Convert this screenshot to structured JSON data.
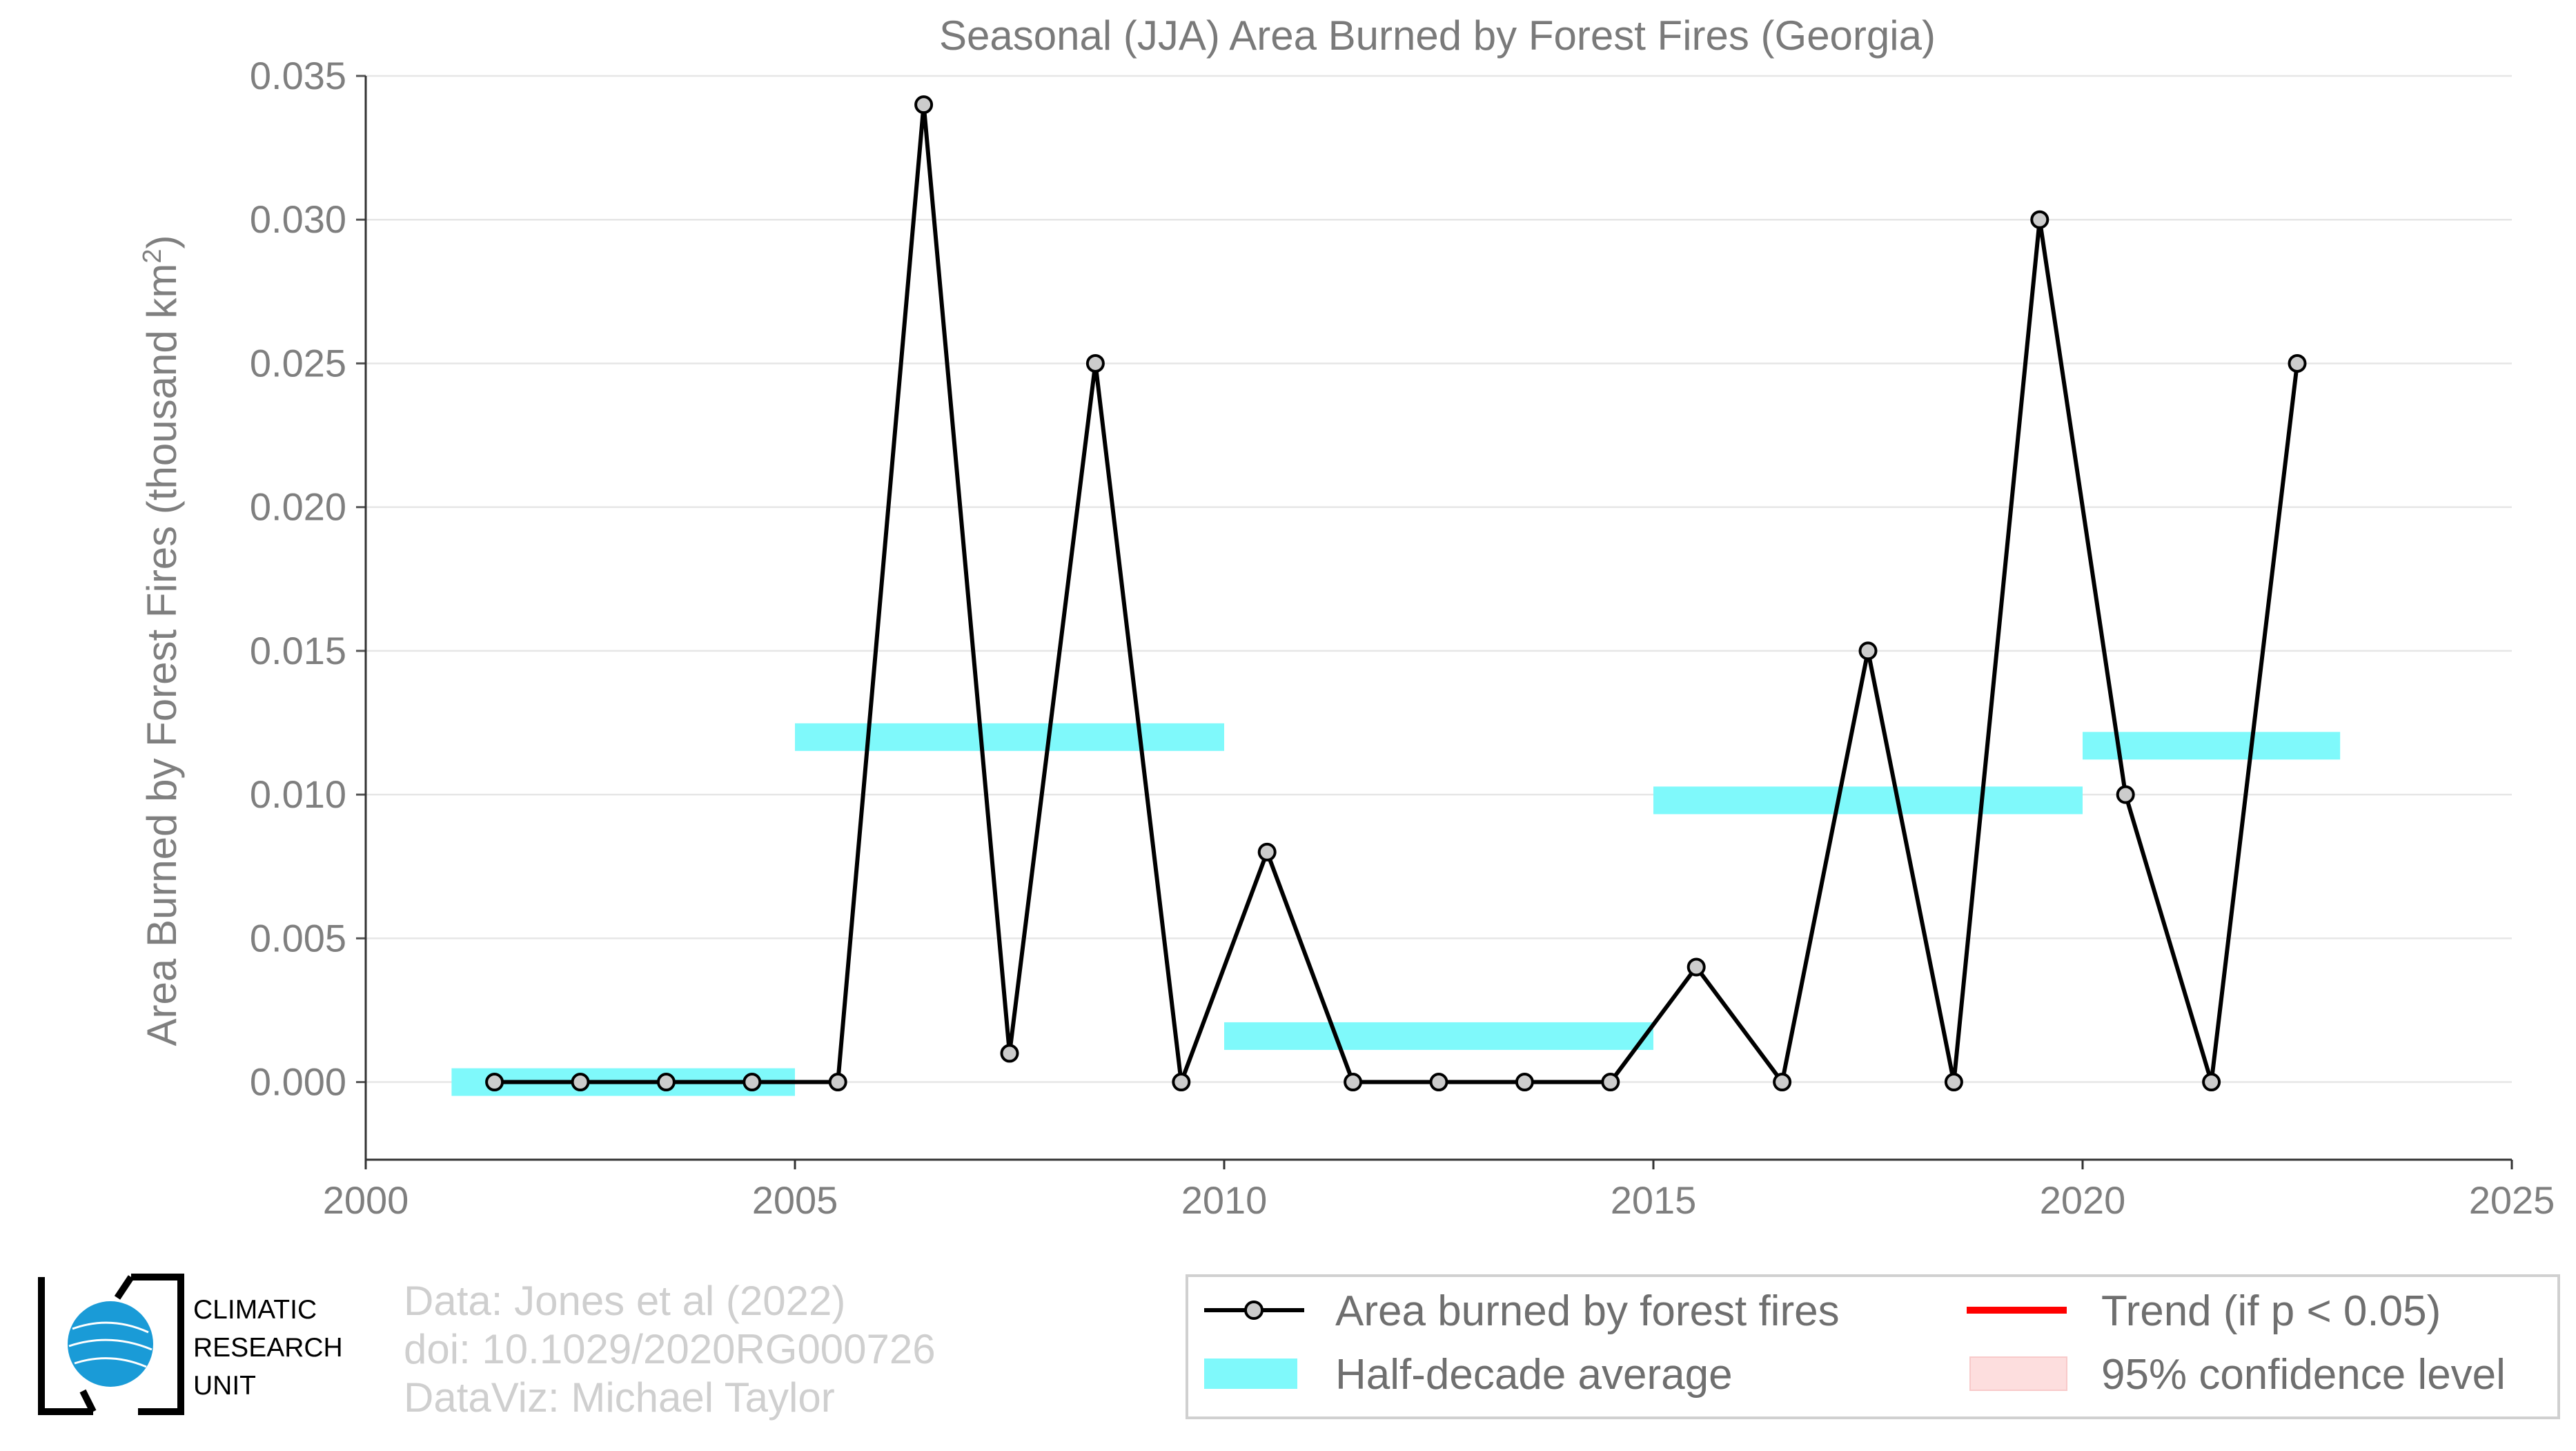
{
  "chart_data": {
    "type": "line",
    "title": "Seasonal (JJA) Area Burned by Forest Fires (Georgia)",
    "ylabel": "Area Burned by Forest Fires (thousand km",
    "ylabel_sup": "2",
    "ylabel_end": ")",
    "xlabel": "",
    "xlim": [
      2000,
      2025
    ],
    "ylim": [
      -0.0027,
      0.035
    ],
    "grid": "horizontal",
    "x_ticks": [
      "2000",
      "2005",
      "2010",
      "2015",
      "2020",
      "2025"
    ],
    "y_ticks": [
      "0.000",
      "0.005",
      "0.010",
      "0.015",
      "0.020",
      "0.025",
      "0.030",
      "0.035"
    ],
    "series": [
      {
        "name": "Area burned by forest fires",
        "color": "#000000",
        "x": [
          2001.5,
          2002.5,
          2003.5,
          2004.5,
          2005.5,
          2006.5,
          2007.5,
          2008.5,
          2009.5,
          2010.5,
          2011.5,
          2012.5,
          2013.5,
          2014.5,
          2015.5,
          2016.5,
          2017.5,
          2018.5,
          2019.5,
          2020.5,
          2021.5,
          2022.5
        ],
        "y": [
          0,
          0,
          0,
          0,
          0,
          0.034,
          0.001,
          0.025,
          0,
          0.008,
          0,
          0,
          0,
          0,
          0.004,
          0,
          0.015,
          0,
          0.03,
          0.01,
          0,
          0.025
        ]
      }
    ],
    "half_decade_average": {
      "name": "Half-decade average",
      "color": "#7ff9fb",
      "segments": [
        {
          "x0": 2001,
          "x1": 2005,
          "y": 0.0
        },
        {
          "x0": 2005,
          "x1": 2010,
          "y": 0.012
        },
        {
          "x0": 2010,
          "x1": 2015,
          "y": 0.0016
        },
        {
          "x0": 2015,
          "x1": 2020,
          "y": 0.0098
        },
        {
          "x0": 2020,
          "x1": 2023,
          "y": 0.0117
        }
      ]
    },
    "legend": {
      "placement": "bottom-right",
      "entries": [
        {
          "label": "Area burned by forest fires",
          "kind": "line-marker",
          "color": "#000000"
        },
        {
          "label": "Trend (if p < 0.05)",
          "kind": "line",
          "color": "#ff0000"
        },
        {
          "label": "Half-decade average",
          "kind": "band",
          "color": "#7ff9fb"
        },
        {
          "label": "95% confidence level",
          "kind": "band",
          "color": "#fddede"
        }
      ]
    }
  },
  "credits": {
    "line1": "Data: Jones et al (2022)",
    "line2": "doi: 10.1029/2020RG000726",
    "line3": "DataViz: Michael Taylor"
  },
  "logo": {
    "line1": "CLIMATIC",
    "line2": "RESEARCH",
    "line3": "UNIT"
  }
}
